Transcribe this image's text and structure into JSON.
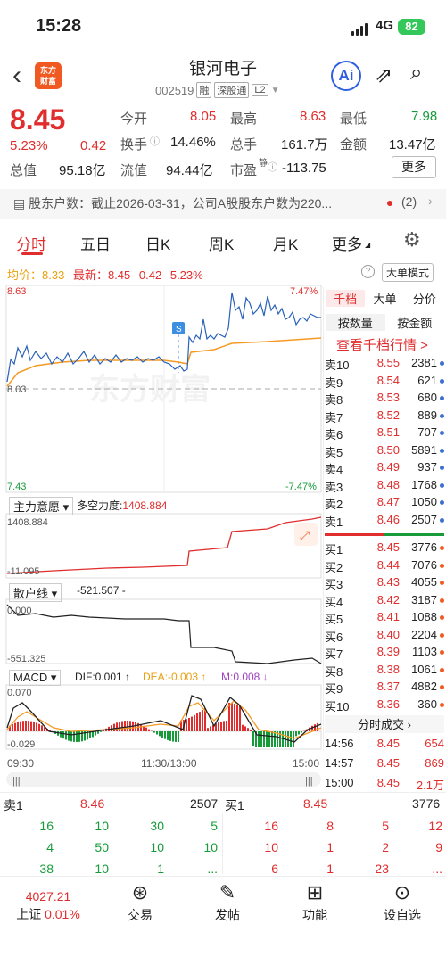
{
  "status": {
    "time": "15:28",
    "network": "4G",
    "battery": "82"
  },
  "header": {
    "logo": "东方\n财富",
    "stock_name": "银河电子",
    "stock_code": "002519",
    "tags": [
      "融",
      "深股通",
      "L2"
    ],
    "ai_label": "Ai"
  },
  "quote": {
    "price": "8.45",
    "change_pct": "5.23%",
    "change": "0.42",
    "fields": [
      {
        "label": "今开",
        "value": "8.05"
      },
      {
        "label": "最高",
        "value": "8.63"
      },
      {
        "label": "最低",
        "value": "7.98"
      },
      {
        "label": "换手",
        "value": "14.46%"
      },
      {
        "label": "总手",
        "value": "161.7万"
      },
      {
        "label": "金额",
        "value": "13.47亿"
      },
      {
        "label": "总值",
        "value": "95.18亿"
      },
      {
        "label": "流值",
        "value": "94.44亿"
      },
      {
        "label": "市盈",
        "value": "-113.75",
        "sup": "静"
      }
    ],
    "more": "更多"
  },
  "notice": {
    "text": "股东户数：截止2026-03-31，公司A股股东户数为220...",
    "count": "(2)"
  },
  "tabs": [
    "分时",
    "五日",
    "日K",
    "周K",
    "月K",
    "更多"
  ],
  "chart": {
    "avg_label": "均价：",
    "avg": "8.33",
    "latest_label": "最新：",
    "latest": "8.45",
    "chg": "0.42",
    "chg_pct": "5.23%",
    "big_btn": "大单模式",
    "y_top": "8.63",
    "y_mid": "8.03",
    "y_bot": "7.43",
    "pct_top": "7.47%",
    "pct_bot": "-7.47%",
    "x_labels": [
      "09:30",
      "11:30/13:00",
      "15:00"
    ],
    "watermark": "东方财富",
    "s_marker": "S"
  },
  "ind1": {
    "name": "主力意愿",
    "label": "多空力度:",
    "value": "1408.884",
    "top": "1408.884",
    "bot": "-11.095"
  },
  "ind2": {
    "name": "散户线",
    "label": "-521.507 -",
    "top": "0.000",
    "bot": "-551.325"
  },
  "ind3": {
    "name": "MACD",
    "dif": "DIF:0.001 ↑",
    "dea": "DEA:-0.003 ↑",
    "m": "M:0.008 ↓",
    "top": "0.070",
    "bot": "-0.029"
  },
  "panel": {
    "tabs": [
      "千档",
      "大单",
      "分价"
    ],
    "sub": [
      "按数量",
      "按金额"
    ],
    "link": "查看千档行情 >",
    "sells": [
      [
        "卖10",
        "8.55",
        "2381"
      ],
      [
        "卖9",
        "8.54",
        "621"
      ],
      [
        "卖8",
        "8.53",
        "680"
      ],
      [
        "卖7",
        "8.52",
        "889"
      ],
      [
        "卖6",
        "8.51",
        "707"
      ],
      [
        "卖5",
        "8.50",
        "5891"
      ],
      [
        "卖4",
        "8.49",
        "937"
      ],
      [
        "卖3",
        "8.48",
        "1768"
      ],
      [
        "卖2",
        "8.47",
        "1050"
      ],
      [
        "卖1",
        "8.46",
        "2507"
      ]
    ],
    "buys": [
      [
        "买1",
        "8.45",
        "3776"
      ],
      [
        "买2",
        "8.44",
        "7076"
      ],
      [
        "买3",
        "8.43",
        "4055"
      ],
      [
        "买4",
        "8.42",
        "3187"
      ],
      [
        "买5",
        "8.41",
        "1088"
      ],
      [
        "买6",
        "8.40",
        "2204"
      ],
      [
        "买7",
        "8.39",
        "1103"
      ],
      [
        "买8",
        "8.38",
        "1061"
      ],
      [
        "买9",
        "8.37",
        "4882"
      ],
      [
        "买10",
        "8.36",
        "360"
      ]
    ],
    "ticks_title": "分时成交",
    "ticks": [
      [
        "14:56",
        "8.45",
        "654"
      ],
      [
        "14:57",
        "8.45",
        "869"
      ],
      [
        "15:00",
        "8.45",
        "2.1万"
      ]
    ]
  },
  "queue": {
    "sell_label": "卖1",
    "sell_price": "8.46",
    "sell_vol": "2507",
    "buy_label": "买1",
    "buy_price": "8.45",
    "buy_vol": "3776",
    "left": [
      [
        "16",
        "10",
        "30",
        "5"
      ],
      [
        "4",
        "50",
        "10",
        "10"
      ],
      [
        "38",
        "10",
        "1",
        "..."
      ]
    ],
    "right": [
      [
        "16",
        "8",
        "5",
        "12"
      ],
      [
        "10",
        "1",
        "2",
        "9"
      ],
      [
        "6",
        "1",
        "23",
        "..."
      ]
    ]
  },
  "bottom": {
    "index_value": "4027.21",
    "index_name": "上证",
    "index_pct": "0.01%",
    "items": [
      "交易",
      "发帖",
      "功能",
      "设自选"
    ]
  }
}
